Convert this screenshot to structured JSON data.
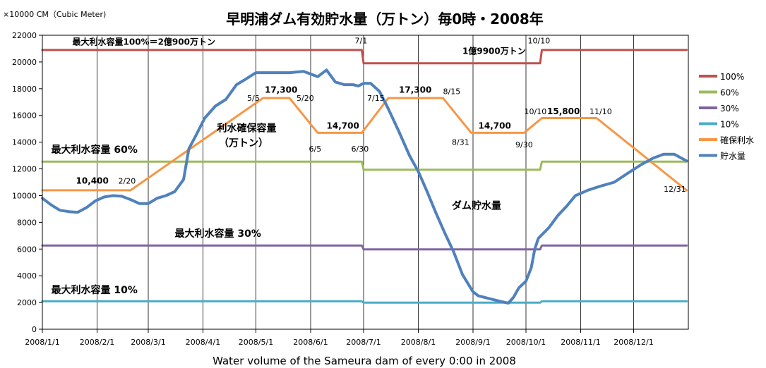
{
  "chart_data": {
    "type": "line",
    "title": "早明浦ダム有効貯水量（万トン）毎0時・2008年",
    "subtitle": "Water volume of the Sameura dam of every 0:00 in 2008",
    "ylabel": "×10000 CM（Cubic Meter)",
    "ylim": [
      0,
      22000
    ],
    "yticks": [
      0,
      2000,
      4000,
      6000,
      8000,
      10000,
      12000,
      14000,
      16000,
      18000,
      20000,
      22000
    ],
    "xlim": [
      "2008-01-01",
      "2008-12-31"
    ],
    "xticks": [
      {
        "date": "2008-01-01",
        "label": "2008/1/1"
      },
      {
        "date": "2008-02-01",
        "label": "2008/2/1"
      },
      {
        "date": "2008-03-01",
        "label": "2008/3/1"
      },
      {
        "date": "2008-04-01",
        "label": "2008/4/1"
      },
      {
        "date": "2008-05-01",
        "label": "2008/5/1"
      },
      {
        "date": "2008-06-01",
        "label": "2008/6/1"
      },
      {
        "date": "2008-07-01",
        "label": "2008/7/1"
      },
      {
        "date": "2008-08-01",
        "label": "2008/8/1"
      },
      {
        "date": "2008-09-01",
        "label": "2008/9/1"
      },
      {
        "date": "2008-10-01",
        "label": "2008/10/1"
      },
      {
        "date": "2008-11-01",
        "label": "2008/11/1"
      },
      {
        "date": "2008-12-01",
        "label": "2008/12/1"
      }
    ],
    "grid": "vertical",
    "legend_position": "right",
    "series": [
      {
        "name": "100%",
        "color": "#c0504d",
        "points": [
          [
            "2008-01-01",
            20900
          ],
          [
            "2008-06-30",
            20900
          ],
          [
            "2008-07-01",
            19900
          ],
          [
            "2008-10-09",
            19900
          ],
          [
            "2008-10-10",
            20900
          ],
          [
            "2008-12-31",
            20900
          ]
        ]
      },
      {
        "name": "60%",
        "color": "#9bbb59",
        "points": [
          [
            "2008-01-01",
            12540
          ],
          [
            "2008-06-30",
            12540
          ],
          [
            "2008-07-01",
            11940
          ],
          [
            "2008-10-09",
            11940
          ],
          [
            "2008-10-10",
            12540
          ],
          [
            "2008-12-31",
            12540
          ]
        ]
      },
      {
        "name": "30%",
        "color": "#8064a2",
        "points": [
          [
            "2008-01-01",
            6270
          ],
          [
            "2008-06-30",
            6270
          ],
          [
            "2008-07-01",
            5970
          ],
          [
            "2008-10-09",
            5970
          ],
          [
            "2008-10-10",
            6270
          ],
          [
            "2008-12-31",
            6270
          ]
        ]
      },
      {
        "name": "10%",
        "color": "#4bacc6",
        "points": [
          [
            "2008-01-01",
            2090
          ],
          [
            "2008-06-30",
            2090
          ],
          [
            "2008-07-01",
            1990
          ],
          [
            "2008-10-09",
            1990
          ],
          [
            "2008-10-10",
            2090
          ],
          [
            "2008-12-31",
            2090
          ]
        ]
      },
      {
        "name": "確保利水",
        "color": "#f79646",
        "points": [
          [
            "2008-01-01",
            10400
          ],
          [
            "2008-02-20",
            10400
          ],
          [
            "2008-05-05",
            17300
          ],
          [
            "2008-05-20",
            17300
          ],
          [
            "2008-06-05",
            14700
          ],
          [
            "2008-06-30",
            14700
          ],
          [
            "2008-07-15",
            17300
          ],
          [
            "2008-08-15",
            17300
          ],
          [
            "2008-08-31",
            14700
          ],
          [
            "2008-09-30",
            14700
          ],
          [
            "2008-10-10",
            15800
          ],
          [
            "2008-11-10",
            15800
          ],
          [
            "2008-12-31",
            10400
          ]
        ]
      },
      {
        "name": "貯水量",
        "color": "#4f81bd",
        "points": [
          [
            "2008-01-01",
            9800
          ],
          [
            "2008-01-06",
            9300
          ],
          [
            "2008-01-11",
            8900
          ],
          [
            "2008-01-16",
            8800
          ],
          [
            "2008-01-21",
            8750
          ],
          [
            "2008-01-26",
            9100
          ],
          [
            "2008-01-31",
            9600
          ],
          [
            "2008-02-05",
            9900
          ],
          [
            "2008-02-10",
            10000
          ],
          [
            "2008-02-15",
            9950
          ],
          [
            "2008-02-20",
            9700
          ],
          [
            "2008-02-25",
            9400
          ],
          [
            "2008-03-01",
            9400
          ],
          [
            "2008-03-06",
            9800
          ],
          [
            "2008-03-11",
            10000
          ],
          [
            "2008-03-16",
            10300
          ],
          [
            "2008-03-21",
            11200
          ],
          [
            "2008-03-24",
            13500
          ],
          [
            "2008-03-28",
            14500
          ],
          [
            "2008-04-02",
            15800
          ],
          [
            "2008-04-08",
            16700
          ],
          [
            "2008-04-14",
            17200
          ],
          [
            "2008-04-20",
            18300
          ],
          [
            "2008-04-25",
            18700
          ],
          [
            "2008-05-01",
            19200
          ],
          [
            "2008-05-10",
            19200
          ],
          [
            "2008-05-20",
            19200
          ],
          [
            "2008-05-28",
            19300
          ],
          [
            "2008-06-01",
            19100
          ],
          [
            "2008-06-05",
            18900
          ],
          [
            "2008-06-10",
            19400
          ],
          [
            "2008-06-15",
            18500
          ],
          [
            "2008-06-20",
            18300
          ],
          [
            "2008-06-25",
            18300
          ],
          [
            "2008-06-28",
            18200
          ],
          [
            "2008-07-01",
            18400
          ],
          [
            "2008-07-05",
            18400
          ],
          [
            "2008-07-10",
            17800
          ],
          [
            "2008-07-15",
            16500
          ],
          [
            "2008-07-21",
            14800
          ],
          [
            "2008-07-27",
            13000
          ],
          [
            "2008-08-01",
            11800
          ],
          [
            "2008-08-06",
            10300
          ],
          [
            "2008-08-11",
            8700
          ],
          [
            "2008-08-16",
            7200
          ],
          [
            "2008-08-21",
            5800
          ],
          [
            "2008-08-26",
            4100
          ],
          [
            "2008-09-01",
            2800
          ],
          [
            "2008-09-04",
            2500
          ],
          [
            "2008-09-10",
            2300
          ],
          [
            "2008-09-16",
            2100
          ],
          [
            "2008-09-21",
            1950
          ],
          [
            "2008-09-24",
            2400
          ],
          [
            "2008-09-27",
            3100
          ],
          [
            "2008-10-01",
            3600
          ],
          [
            "2008-10-04",
            4600
          ],
          [
            "2008-10-06",
            6000
          ],
          [
            "2008-10-08",
            6800
          ],
          [
            "2008-10-14",
            7600
          ],
          [
            "2008-10-19",
            8500
          ],
          [
            "2008-10-24",
            9200
          ],
          [
            "2008-10-29",
            10000
          ],
          [
            "2008-11-05",
            10400
          ],
          [
            "2008-11-12",
            10700
          ],
          [
            "2008-11-20",
            11000
          ],
          [
            "2008-11-28",
            11700
          ],
          [
            "2008-12-05",
            12300
          ],
          [
            "2008-12-12",
            12800
          ],
          [
            "2008-12-18",
            13100
          ],
          [
            "2008-12-24",
            13100
          ],
          [
            "2008-12-31",
            12600
          ]
        ]
      }
    ],
    "annotations": [
      {
        "text": "最大利水容量100%＝2億900万トン",
        "x": "2008-01-18",
        "y": 21300,
        "size": "medium"
      },
      {
        "text": "1億9900万トン",
        "x": "2008-08-26",
        "y": 20600,
        "size": "medium"
      },
      {
        "text": "7/1",
        "x": "2008-06-26",
        "y": 21400,
        "size": "small"
      },
      {
        "text": "10/10",
        "x": "2008-10-02",
        "y": 21400,
        "size": "small"
      },
      {
        "text": "最大利水容量 60%",
        "x": "2008-01-06",
        "y": 13200,
        "size": "large"
      },
      {
        "text": "最大利水容量 30%",
        "x": "2008-03-16",
        "y": 6900,
        "size": "large"
      },
      {
        "text": "最大利水容量 10%",
        "x": "2008-01-06",
        "y": 2700,
        "size": "large"
      },
      {
        "text": "ダム貯水量",
        "x": "2008-08-20",
        "y": 9000,
        "size": "large"
      },
      {
        "text": "利水確保容量",
        "x": "2008-04-09",
        "y": 14800,
        "size": "large"
      },
      {
        "text": "（万トン）",
        "x": "2008-04-10",
        "y": 13700,
        "size": "large"
      },
      {
        "text": "10,400",
        "x": "2008-01-20",
        "y": 10900,
        "size": "medium"
      },
      {
        "text": "2/20",
        "x": "2008-02-13",
        "y": 10900,
        "size": "small"
      },
      {
        "text": "5/5",
        "x": "2008-04-26",
        "y": 17100,
        "size": "small"
      },
      {
        "text": "17,300",
        "x": "2008-05-06",
        "y": 17700,
        "size": "medium"
      },
      {
        "text": "5/20",
        "x": "2008-05-24",
        "y": 17100,
        "size": "small"
      },
      {
        "text": "14,700",
        "x": "2008-06-10",
        "y": 15000,
        "size": "medium"
      },
      {
        "text": "6/5",
        "x": "2008-05-31",
        "y": 13300,
        "size": "small"
      },
      {
        "text": "6/30",
        "x": "2008-06-24",
        "y": 13300,
        "size": "small"
      },
      {
        "text": "7/15",
        "x": "2008-07-03",
        "y": 17100,
        "size": "small"
      },
      {
        "text": "17,300",
        "x": "2008-07-21",
        "y": 17700,
        "size": "medium"
      },
      {
        "text": "8/15",
        "x": "2008-08-15",
        "y": 17600,
        "size": "small"
      },
      {
        "text": "8/31",
        "x": "2008-08-20",
        "y": 13800,
        "size": "small"
      },
      {
        "text": "14,700",
        "x": "2008-09-04",
        "y": 15000,
        "size": "medium"
      },
      {
        "text": "9/30",
        "x": "2008-09-25",
        "y": 13600,
        "size": "small"
      },
      {
        "text": "10/10",
        "x": "2008-09-30",
        "y": 16100,
        "size": "small"
      },
      {
        "text": "15,800",
        "x": "2008-10-13",
        "y": 16100,
        "size": "medium"
      },
      {
        "text": "11/10",
        "x": "2008-11-06",
        "y": 16100,
        "size": "small"
      },
      {
        "text": "12/31",
        "x": "2008-12-18",
        "y": 10300,
        "size": "small"
      }
    ]
  }
}
